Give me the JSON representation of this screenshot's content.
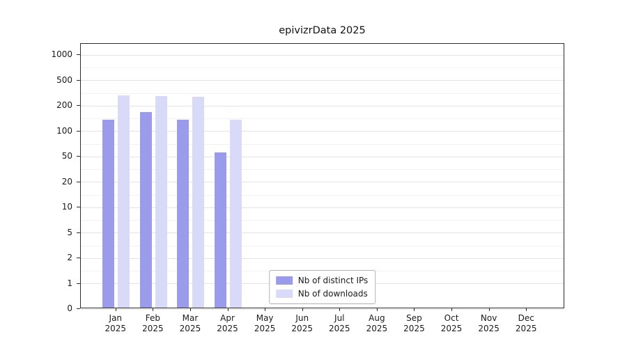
{
  "chart_data": {
    "type": "bar",
    "title": "epivizrData 2025",
    "categories": [
      "Jan",
      "Feb",
      "Mar",
      "Apr",
      "May",
      "Jun",
      "Jul",
      "Aug",
      "Sep",
      "Oct",
      "Nov",
      "Dec"
    ],
    "x_year": "2025",
    "series": [
      {
        "id": "distinct-ips",
        "name": "Nb of distinct IPs",
        "color": "#9b9bec",
        "values": [
          140,
          170,
          140,
          55,
          0,
          0,
          0,
          0,
          0,
          0,
          0,
          0
        ]
      },
      {
        "id": "downloads",
        "name": "Nb of downloads",
        "color": "#d9d9f8",
        "values": [
          305,
          295,
          290,
          140,
          0,
          0,
          0,
          0,
          0,
          0,
          0,
          0
        ]
      }
    ],
    "yticks": [
      0,
      1,
      2,
      5,
      10,
      20,
      50,
      100,
      200,
      500,
      1000
    ],
    "ylim": [
      0,
      1000
    ],
    "xlabel": "",
    "ylabel": "",
    "grid": true,
    "legend_position": "lower center",
    "y_scale": "log-like-even-spaced-ticks"
  }
}
